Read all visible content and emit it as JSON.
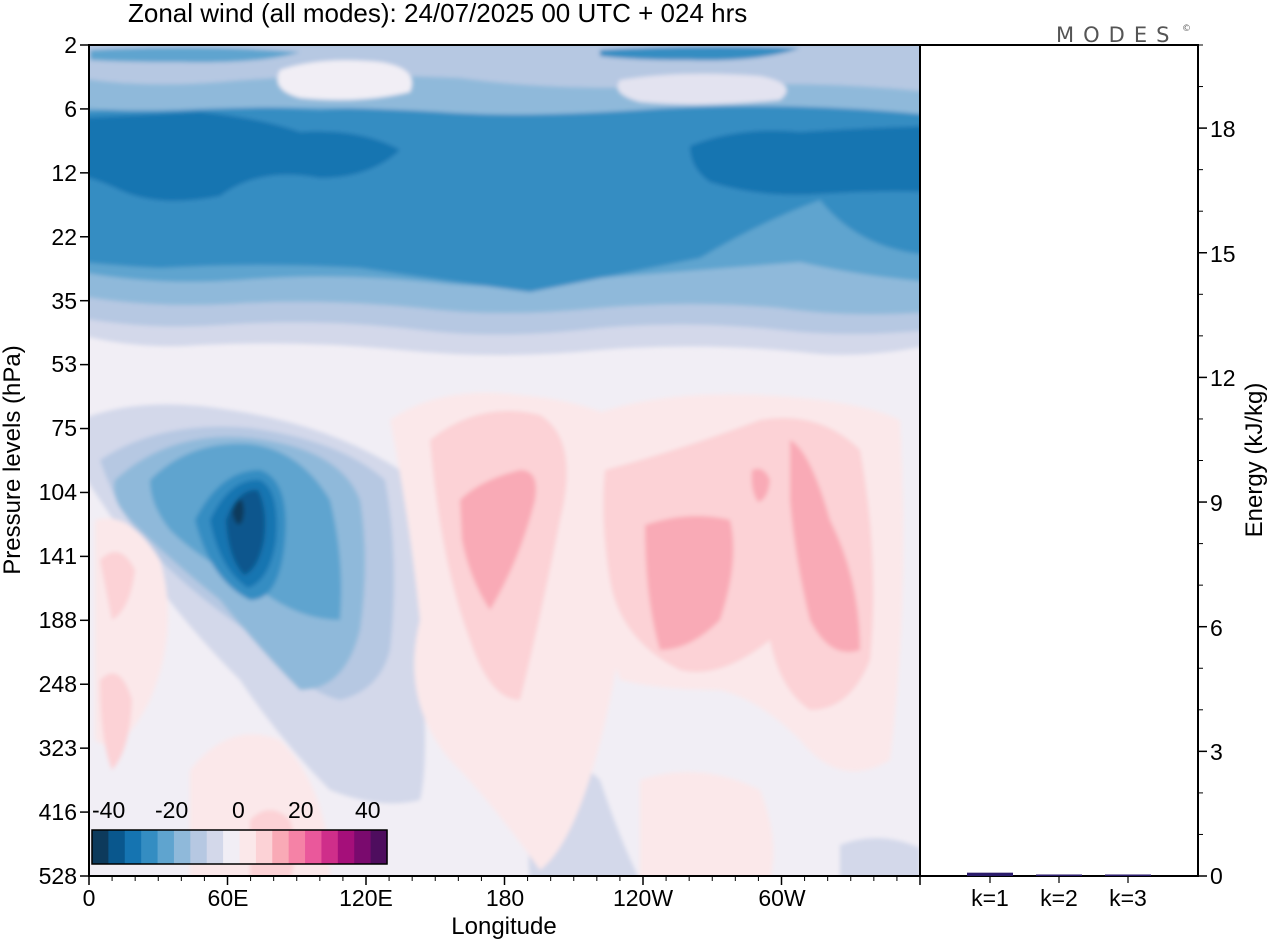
{
  "chart_data": [
    {
      "type": "heatmap",
      "title": "Zonal wind (all modes):  24/07/2025  00 UTC  + 024 hrs",
      "xlabel": "Longitude",
      "ylabel": "Pressure levels (hPa)",
      "x_ticks": [
        "0",
        "60E",
        "120E",
        "180",
        "120W",
        "60W"
      ],
      "y_ticks": [
        "2",
        "6",
        "12",
        "22",
        "35",
        "53",
        "75",
        "104",
        "141",
        "188",
        "248",
        "323",
        "416",
        "528"
      ],
      "colorbar": {
        "ticks": [
          "-40",
          "-20",
          "0",
          "20",
          "40"
        ],
        "colors": [
          "#0d3a5c",
          "#09578d",
          "#1574b1",
          "#348dc2",
          "#5fa4cf",
          "#8fb9da",
          "#b6c8e2",
          "#d3d8ea",
          "#f1eef5",
          "#fbe8ea",
          "#fcd2d6",
          "#f9aab6",
          "#f582a6",
          "#ea589b",
          "#cf2e8a",
          "#a50f7a",
          "#7a0a6e",
          "#4e0d5e"
        ]
      },
      "field_summary": [
        {
          "feature": "upper easterly band",
          "pressure_hPa": [
            6,
            35
          ],
          "value": -30
        },
        {
          "feature": "weak easterlies near top",
          "pressure_hPa": [
            2,
            6
          ],
          "value": -10
        },
        {
          "feature": "easterly jet core",
          "longitude": 65,
          "pressure_hPa": 130,
          "value": -35
        },
        {
          "feature": "westerly maximum",
          "longitude": 175,
          "pressure_hPa": 140,
          "value": 12
        },
        {
          "feature": "westerly maximum",
          "longitude": 230,
          "pressure_hPa": 150,
          "value": 12
        },
        {
          "feature": "westerly maximum",
          "longitude": 285,
          "pressure_hPa": 160,
          "value": 12
        }
      ]
    },
    {
      "type": "bar",
      "ylabel": "Energy (kJ/kg)",
      "categories": [
        "k=1",
        "k=2",
        "k=3"
      ],
      "values": [
        0.08,
        0.03,
        0.01
      ],
      "ylim": [
        0,
        20
      ],
      "y_ticks": [
        "0",
        "3",
        "6",
        "9",
        "12",
        "15",
        "18"
      ],
      "bar_color": "#2a1b6b"
    }
  ]
}
